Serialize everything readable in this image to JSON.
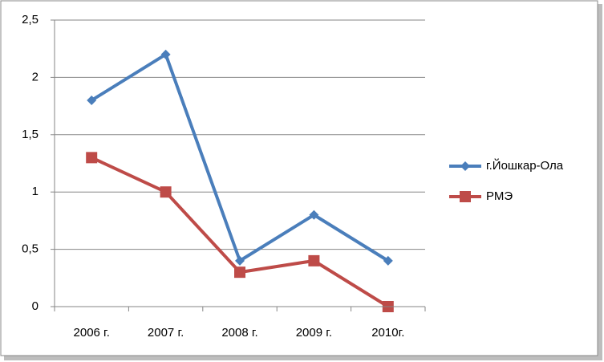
{
  "chart_data": {
    "type": "line",
    "categories": [
      "2006 г.",
      "2007 г.",
      "2008 г.",
      "2009 г.",
      "2010г."
    ],
    "series": [
      {
        "name": "г.Йошкар-Ола",
        "color": "#4a7ebb",
        "marker": "diamond",
        "values": [
          1.8,
          2.2,
          0.4,
          0.8,
          0.4
        ]
      },
      {
        "name": "РМЭ",
        "color": "#be4b48",
        "marker": "square",
        "values": [
          1.3,
          1.0,
          0.3,
          0.4,
          0.0
        ]
      }
    ],
    "ylim": [
      0,
      2.5
    ],
    "yticks": [
      0,
      {
        "value": 0.5,
        "label": "0,5"
      },
      1,
      {
        "value": 1.5,
        "label": "1,5"
      },
      2,
      {
        "value": 2.5,
        "label": "2,5"
      }
    ],
    "grid": true,
    "legend": "right"
  }
}
